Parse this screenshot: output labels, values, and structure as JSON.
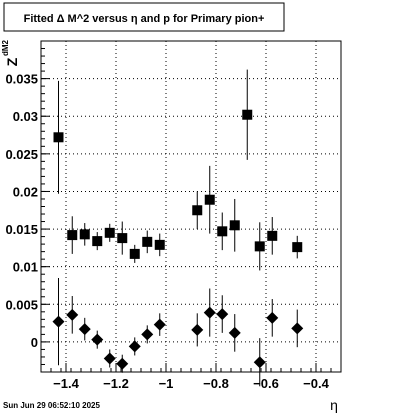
{
  "chart_data": {
    "type": "scatter",
    "title": "Fitted Δ M^2 versus η and p for Primary pion+",
    "xlabel": "η",
    "ylabel": "Z",
    "ylabel_subscript": "dM2",
    "xlim": [
      -1.5,
      -0.3
    ],
    "ylim": [
      -0.004,
      0.04
    ],
    "grid": true,
    "x_ticks": [
      -1.4,
      -1.2,
      -1,
      -0.8,
      -0.6,
      -0.4
    ],
    "x_tick_labels": [
      "−1.4",
      "−1.2",
      "−1",
      "−0.8",
      "−0.6",
      "−0.4"
    ],
    "y_ticks": [
      0,
      0.005,
      0.01,
      0.015,
      0.02,
      0.025,
      0.03,
      0.035
    ],
    "y_tick_labels": [
      "0",
      "0.005",
      "0.01",
      "0.015",
      "0.02",
      "0.025",
      "0.03",
      "0.035"
    ],
    "series": [
      {
        "marker": "square",
        "color": "#000000",
        "points": [
          {
            "x": -1.43,
            "y": 0.0272,
            "err": 0.0075
          },
          {
            "x": -1.375,
            "y": 0.0142,
            "err": 0.0025
          },
          {
            "x": -1.325,
            "y": 0.0143,
            "err": 0.0015
          },
          {
            "x": -1.275,
            "y": 0.0134,
            "err": 0.0012
          },
          {
            "x": -1.225,
            "y": 0.0145,
            "err": 0.0012
          },
          {
            "x": -1.175,
            "y": 0.0138,
            "err": 0.0022
          },
          {
            "x": -1.125,
            "y": 0.0117,
            "err": 0.0012
          },
          {
            "x": -1.075,
            "y": 0.0133,
            "err": 0.0015
          },
          {
            "x": -1.025,
            "y": 0.0129,
            "err": 0.0015
          },
          {
            "x": -0.875,
            "y": 0.0175,
            "err": 0.0025
          },
          {
            "x": -0.825,
            "y": 0.0189,
            "err": 0.0045
          },
          {
            "x": -0.775,
            "y": 0.0147,
            "err": 0.0025
          },
          {
            "x": -0.725,
            "y": 0.0155,
            "err": 0.0035
          },
          {
            "x": -0.675,
            "y": 0.0302,
            "err": 0.006
          },
          {
            "x": -0.625,
            "y": 0.0127,
            "err": 0.0032
          },
          {
            "x": -0.575,
            "y": 0.0141,
            "err": 0.0025
          },
          {
            "x": -0.475,
            "y": 0.0126,
            "err": 0.0015
          }
        ]
      },
      {
        "marker": "diamond",
        "color": "#000000",
        "points": [
          {
            "x": -1.43,
            "y": 0.0027,
            "err": 0.0058
          },
          {
            "x": -1.375,
            "y": 0.0036,
            "err": 0.0025
          },
          {
            "x": -1.325,
            "y": 0.0017,
            "err": 0.0015
          },
          {
            "x": -1.275,
            "y": 0.0003,
            "err": 0.0012
          },
          {
            "x": -1.225,
            "y": -0.0022,
            "err": 0.0012
          },
          {
            "x": -1.175,
            "y": -0.0029,
            "err": 0.0012
          },
          {
            "x": -1.125,
            "y": -0.0006,
            "err": 0.0012
          },
          {
            "x": -1.075,
            "y": 0.001,
            "err": 0.0012
          },
          {
            "x": -1.025,
            "y": 0.0023,
            "err": 0.0015
          },
          {
            "x": -0.875,
            "y": 0.0016,
            "err": 0.0022
          },
          {
            "x": -0.825,
            "y": 0.0039,
            "err": 0.0032
          },
          {
            "x": -0.775,
            "y": 0.0037,
            "err": 0.0025
          },
          {
            "x": -0.725,
            "y": 0.0012,
            "err": 0.0025
          },
          {
            "x": -0.625,
            "y": -0.0027,
            "err": 0.0032
          },
          {
            "x": -0.575,
            "y": 0.0032,
            "err": 0.0025
          },
          {
            "x": -0.475,
            "y": 0.0018,
            "err": 0.0025
          }
        ]
      }
    ]
  },
  "footer": {
    "timestamp": "Sun Jun 29 06:52:10 2025"
  }
}
